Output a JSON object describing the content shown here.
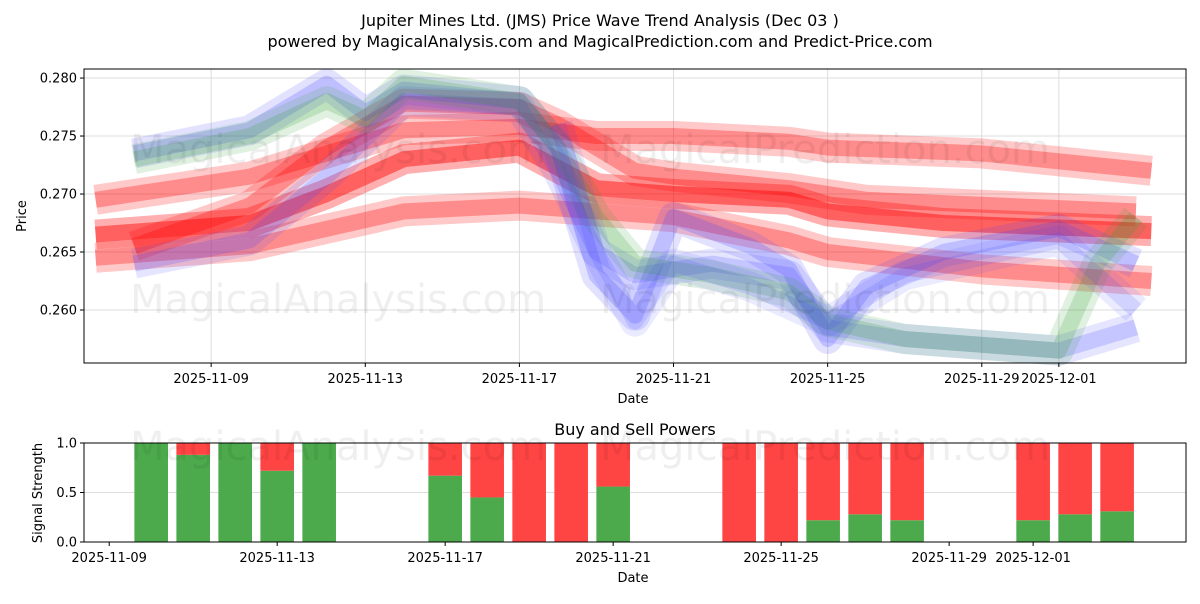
{
  "title_line1": "Jupiter Mines Ltd. (JMS) Price Wave Trend Analysis (Dec 03 )",
  "title_line2": "powered by MagicalAnalysis.com and MagicalPrediction.com and Predict-Price.com",
  "watermarks": [
    "MagicalAnalysis.com",
    "MagicalPrediction.com"
  ],
  "colors": {
    "red": "#ff0000",
    "blue": "#4444ff",
    "green": "#2e9e2e",
    "buy": "#4caa4c",
    "sell": "#ff4444"
  },
  "chart_data": [
    {
      "type": "area",
      "title": "",
      "xlabel": "Date",
      "ylabel": "Price",
      "ylim": [
        0.25543,
        0.28078
      ],
      "xlim_days_from_2025_11_09": [
        -3.3,
        25.3
      ],
      "grid": true,
      "yticks": [
        "0.260",
        "0.265",
        "0.270",
        "0.275",
        "0.280"
      ],
      "ytick_values": [
        0.26,
        0.265,
        0.27,
        0.275,
        0.28
      ],
      "xticks": [
        "2025-11-09",
        "2025-11-13",
        "2025-11-17",
        "2025-11-21",
        "2025-11-25",
        "2025-11-29",
        "2025-12-01"
      ],
      "xtick_days": [
        0,
        4,
        8,
        12,
        16,
        20,
        22
      ],
      "series": [
        {
          "name": "red-band-upper",
          "color": "red",
          "opacity": 0.3,
          "x": [
            -3,
            1,
            4,
            5,
            8,
            10,
            12,
            15,
            16,
            20,
            24.4
          ],
          "y": [
            0.2695,
            0.2715,
            0.2745,
            0.2755,
            0.2758,
            0.275,
            0.275,
            0.2745,
            0.274,
            0.2735,
            0.272
          ]
        },
        {
          "name": "red-band-center",
          "color": "red",
          "opacity": 0.45,
          "x": [
            -3,
            1,
            3,
            5,
            8,
            10,
            12,
            15,
            16,
            19,
            24.4
          ],
          "y": [
            0.2665,
            0.2675,
            0.27,
            0.273,
            0.274,
            0.2705,
            0.27,
            0.2695,
            0.2685,
            0.2675,
            0.2668
          ]
        },
        {
          "name": "red-band-lower",
          "color": "red",
          "opacity": 0.3,
          "x": [
            -3,
            1,
            3,
            5,
            8,
            10,
            12,
            15,
            16,
            20,
            24.4
          ],
          "y": [
            0.2645,
            0.2655,
            0.267,
            0.2685,
            0.269,
            0.2685,
            0.268,
            0.266,
            0.265,
            0.2635,
            0.2625
          ]
        },
        {
          "name": "red-band-peak",
          "color": "red",
          "opacity": 0.3,
          "x": [
            -2,
            1,
            3,
            5,
            8,
            9,
            11,
            12,
            15,
            17,
            24
          ],
          "y": [
            0.2655,
            0.269,
            0.274,
            0.2778,
            0.2775,
            0.276,
            0.272,
            0.2715,
            0.2705,
            0.2695,
            0.2685
          ]
        },
        {
          "name": "blue-band-1",
          "color": "blue",
          "opacity": 0.22,
          "x": [
            -2,
            1,
            3,
            4,
            5,
            8,
            9,
            10,
            11,
            12,
            14,
            15,
            16,
            17,
            19,
            22,
            24
          ],
          "y": [
            0.2735,
            0.2755,
            0.2795,
            0.277,
            0.279,
            0.278,
            0.274,
            0.263,
            0.2595,
            0.268,
            0.2655,
            0.2635,
            0.2575,
            0.262,
            0.265,
            0.267,
            0.264
          ]
        },
        {
          "name": "blue-band-2",
          "color": "blue",
          "opacity": 0.2,
          "x": [
            -2,
            1,
            3,
            5,
            8,
            9,
            10,
            11,
            13,
            15,
            16,
            18,
            20,
            22,
            24
          ],
          "y": [
            0.264,
            0.266,
            0.2715,
            0.278,
            0.2775,
            0.272,
            0.265,
            0.263,
            0.264,
            0.263,
            0.2585,
            0.2575,
            0.257,
            0.2565,
            0.2585
          ]
        },
        {
          "name": "green-band",
          "color": "green",
          "opacity": 0.2,
          "x": [
            -2,
            1,
            3,
            4,
            5,
            8,
            9,
            10,
            11,
            13,
            15,
            16,
            18,
            22,
            23,
            24
          ],
          "y": [
            0.273,
            0.275,
            0.278,
            0.2765,
            0.2795,
            0.278,
            0.274,
            0.268,
            0.264,
            0.263,
            0.2615,
            0.259,
            0.2575,
            0.2565,
            0.264,
            0.268
          ]
        },
        {
          "name": "blue-band-3",
          "color": "blue",
          "opacity": 0.15,
          "x": [
            9,
            10,
            11,
            12,
            14,
            16,
            18,
            22,
            24
          ],
          "y": [
            0.276,
            0.265,
            0.259,
            0.264,
            0.262,
            0.259,
            0.263,
            0.266,
            0.26
          ]
        }
      ]
    },
    {
      "type": "bar",
      "title": "Buy and Sell Powers",
      "xlabel": "Date",
      "ylabel": "Signal Strength",
      "ylim": [
        0,
        1
      ],
      "yticks": [
        "0.0",
        "0.5",
        "1.0"
      ],
      "ytick_values": [
        0,
        0.5,
        1.0
      ],
      "xticks": [
        "2025-11-09",
        "2025-11-13",
        "2025-11-17",
        "2025-11-21",
        "2025-11-25",
        "2025-11-29",
        "2025-12-01"
      ],
      "xtick_days": [
        0,
        4,
        8,
        12,
        16,
        20,
        22
      ],
      "xlim_days_from_2025_11_09": [
        -0.6,
        25.64
      ],
      "categories": [
        "2025-11-10",
        "2025-11-11",
        "2025-11-12",
        "2025-11-13",
        "2025-11-14",
        "2025-11-17",
        "2025-11-18",
        "2025-11-19",
        "2025-11-20",
        "2025-11-21",
        "2025-11-24",
        "2025-11-25",
        "2025-11-26",
        "2025-11-27",
        "2025-11-28",
        "2025-12-01",
        "2025-12-02",
        "2025-12-03"
      ],
      "days": [
        1,
        2,
        3,
        4,
        5,
        8,
        9,
        10,
        11,
        12,
        15,
        16,
        17,
        18,
        19,
        22,
        23,
        24
      ],
      "series": [
        {
          "name": "Buy",
          "color": "buy",
          "values": [
            1.0,
            0.88,
            1.0,
            0.72,
            1.0,
            0.67,
            0.45,
            0,
            0,
            0.56,
            0,
            0,
            0.22,
            0.28,
            0.22,
            0.22,
            0.28,
            0.31
          ]
        },
        {
          "name": "Sell",
          "color": "sell",
          "values": [
            0,
            0.12,
            0,
            0.28,
            0,
            0.33,
            0.55,
            1.0,
            1.0,
            0.44,
            1.0,
            1.0,
            0.78,
            0.72,
            0.78,
            0.78,
            0.72,
            0.69
          ]
        }
      ]
    }
  ]
}
